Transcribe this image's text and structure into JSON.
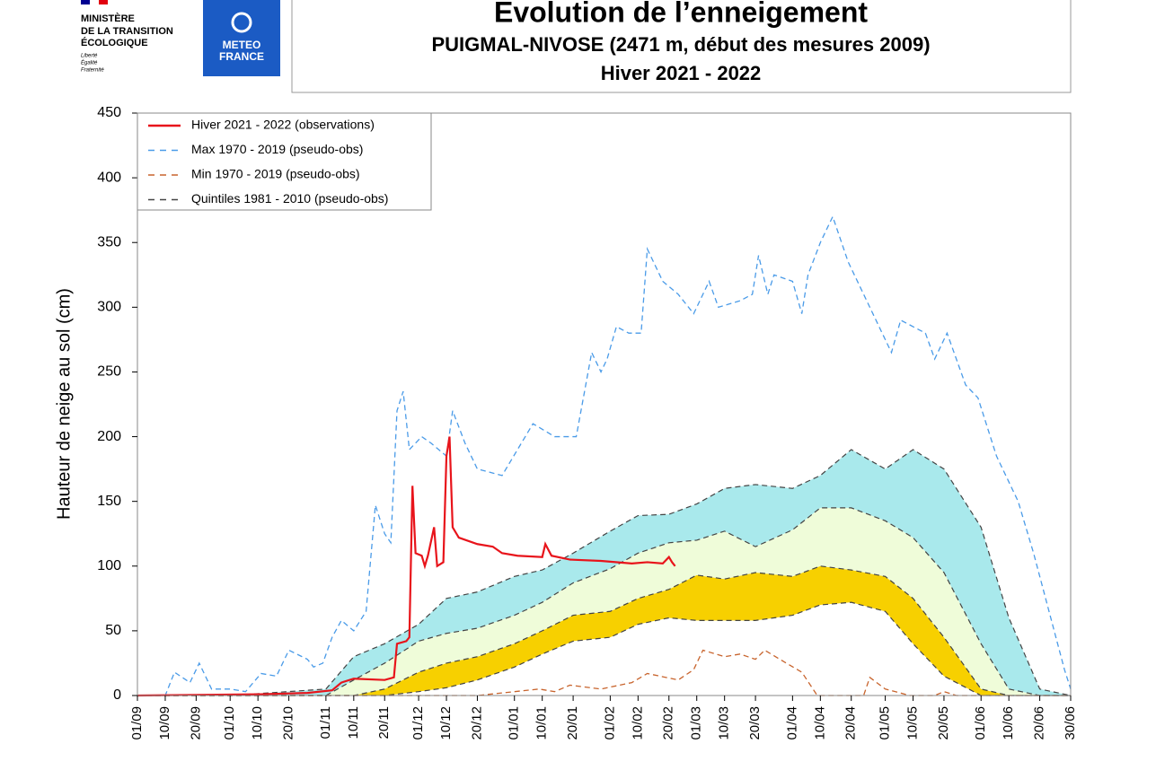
{
  "header": {
    "ministry": [
      "MINISTÈRE",
      "DE LA TRANSITION",
      "ÉCOLOGIQUE"
    ],
    "motto": [
      "Liberté",
      "Égalité",
      "Fraternité"
    ],
    "meteo": [
      "METEO",
      "FRANCE"
    ]
  },
  "chart_data": {
    "type": "line",
    "title": "Evolution de l’enneigement",
    "subtitle": "PUIGMAL-NIVOSE (2471 m, début des mesures 2009)",
    "season": "Hiver 2021 - 2022",
    "y_label": "Hauteur de neige au sol (cm)",
    "xlim": [
      0,
      302
    ],
    "xticks": [
      {
        "value": 0,
        "label": "01/09"
      },
      {
        "value": 9,
        "label": "10/09"
      },
      {
        "value": 19,
        "label": "20/09"
      },
      {
        "value": 30,
        "label": "01/10"
      },
      {
        "value": 39,
        "label": "10/10"
      },
      {
        "value": 49,
        "label": "20/10"
      },
      {
        "value": 61,
        "label": "01/11"
      },
      {
        "value": 70,
        "label": "10/11"
      },
      {
        "value": 80,
        "label": "20/11"
      },
      {
        "value": 91,
        "label": "01/12"
      },
      {
        "value": 100,
        "label": "10/12"
      },
      {
        "value": 110,
        "label": "20/12"
      },
      {
        "value": 122,
        "label": "01/01"
      },
      {
        "value": 131,
        "label": "10/01"
      },
      {
        "value": 141,
        "label": "20/01"
      },
      {
        "value": 153,
        "label": "01/02"
      },
      {
        "value": 162,
        "label": "10/02"
      },
      {
        "value": 172,
        "label": "20/02"
      },
      {
        "value": 181,
        "label": "01/03"
      },
      {
        "value": 190,
        "label": "10/03"
      },
      {
        "value": 200,
        "label": "20/03"
      },
      {
        "value": 212,
        "label": "01/04"
      },
      {
        "value": 221,
        "label": "10/04"
      },
      {
        "value": 231,
        "label": "20/04"
      },
      {
        "value": 242,
        "label": "01/05"
      },
      {
        "value": 251,
        "label": "10/05"
      },
      {
        "value": 261,
        "label": "20/05"
      },
      {
        "value": 273,
        "label": "01/06"
      },
      {
        "value": 282,
        "label": "10/06"
      },
      {
        "value": 292,
        "label": "20/06"
      },
      {
        "value": 302,
        "label": "30/06"
      }
    ],
    "ylim": [
      0,
      450
    ],
    "yticks": [
      0,
      50,
      100,
      150,
      200,
      250,
      300,
      350,
      400,
      450
    ],
    "legend": "upper left",
    "series": [
      {
        "name": "Hiver 2021 - 2022 (observations)",
        "color": "#e8141b",
        "dash": false,
        "x": [
          0,
          40,
          55,
          63,
          66,
          70,
          80,
          83,
          84,
          87,
          88,
          89,
          90,
          92,
          93,
          94,
          96,
          97,
          99,
          100,
          101,
          102,
          104,
          110,
          115,
          118,
          123,
          131,
          132,
          134,
          140,
          150,
          160,
          165,
          170,
          172,
          173,
          174
        ],
        "values": [
          0,
          1,
          2,
          4,
          10,
          13,
          12,
          14,
          40,
          42,
          45,
          162,
          110,
          108,
          100,
          108,
          130,
          100,
          103,
          185,
          200,
          130,
          122,
          117,
          115,
          110,
          108,
          107,
          117,
          108,
          105,
          104,
          102,
          103,
          102,
          107,
          103,
          100
        ]
      },
      {
        "name": "Max 1970 - 2019 (pseudo-obs)",
        "color": "#4a9be8",
        "dash": true,
        "x": [
          0,
          9,
          12,
          17,
          20,
          24,
          30,
          35,
          40,
          45,
          49,
          55,
          57,
          60,
          63,
          66,
          70,
          74,
          77,
          80,
          82,
          84,
          86,
          88,
          92,
          95,
          100,
          102,
          106,
          110,
          118,
          123,
          128,
          135,
          142,
          147,
          150,
          152,
          155,
          159,
          163,
          165,
          170,
          175,
          180,
          185,
          188,
          195,
          199,
          201,
          204,
          206,
          212,
          215,
          217,
          221,
          225,
          230,
          238,
          244,
          247,
          255,
          258,
          262,
          268,
          272,
          278,
          285,
          290,
          300,
          302
        ],
        "values": [
          0,
          0,
          18,
          10,
          25,
          5,
          5,
          3,
          17,
          15,
          35,
          28,
          22,
          25,
          45,
          58,
          50,
          65,
          147,
          125,
          118,
          220,
          235,
          190,
          200,
          195,
          185,
          220,
          195,
          175,
          170,
          190,
          210,
          200,
          200,
          265,
          250,
          260,
          285,
          280,
          280,
          345,
          320,
          310,
          295,
          320,
          300,
          305,
          310,
          340,
          310,
          325,
          320,
          295,
          325,
          350,
          370,
          335,
          295,
          265,
          290,
          280,
          260,
          280,
          240,
          230,
          185,
          150,
          110,
          20,
          5
        ]
      },
      {
        "name": "Min 1970 - 2019 (pseudo-obs)",
        "color": "#c8642d",
        "dash": true,
        "x": [
          0,
          110,
          122,
          130,
          135,
          140,
          150,
          160,
          165,
          175,
          180,
          183,
          190,
          195,
          200,
          203,
          210,
          215,
          220,
          235,
          237,
          242,
          250,
          258,
          261,
          265,
          302
        ],
        "values": [
          0,
          0,
          3,
          5,
          3,
          8,
          5,
          10,
          17,
          12,
          20,
          35,
          30,
          32,
          28,
          35,
          25,
          18,
          0,
          0,
          14,
          5,
          0,
          0,
          3,
          0,
          0
        ]
      }
    ],
    "quintiles": {
      "name": "Quintiles 1981 - 2010 (pseudo-obs)",
      "color": "#444444",
      "fill_colors": [
        "#f7d000",
        "#effcd9",
        "#a9e9ec"
      ],
      "x": [
        0,
        30,
        61,
        70,
        80,
        91,
        100,
        110,
        122,
        131,
        141,
        153,
        162,
        172,
        181,
        190,
        200,
        212,
        221,
        231,
        242,
        251,
        261,
        273,
        282,
        292,
        302
      ],
      "q1": [
        0,
        0,
        0,
        0,
        0,
        3,
        6,
        12,
        22,
        32,
        42,
        45,
        55,
        60,
        58,
        58,
        58,
        62,
        70,
        72,
        65,
        40,
        15,
        0,
        0,
        0,
        0
      ],
      "q2": [
        0,
        0,
        0,
        0,
        5,
        18,
        25,
        30,
        40,
        50,
        62,
        65,
        75,
        82,
        93,
        90,
        95,
        92,
        100,
        97,
        92,
        75,
        45,
        5,
        0,
        0,
        0
      ],
      "q3": [
        0,
        0,
        0,
        12,
        25,
        42,
        48,
        52,
        62,
        72,
        87,
        98,
        110,
        118,
        120,
        127,
        115,
        128,
        145,
        145,
        135,
        122,
        95,
        40,
        5,
        0,
        0
      ],
      "q4": [
        0,
        0,
        5,
        30,
        40,
        55,
        75,
        80,
        92,
        97,
        110,
        127,
        139,
        140,
        148,
        160,
        163,
        160,
        170,
        190,
        175,
        190,
        175,
        130,
        60,
        5,
        0
      ]
    }
  }
}
